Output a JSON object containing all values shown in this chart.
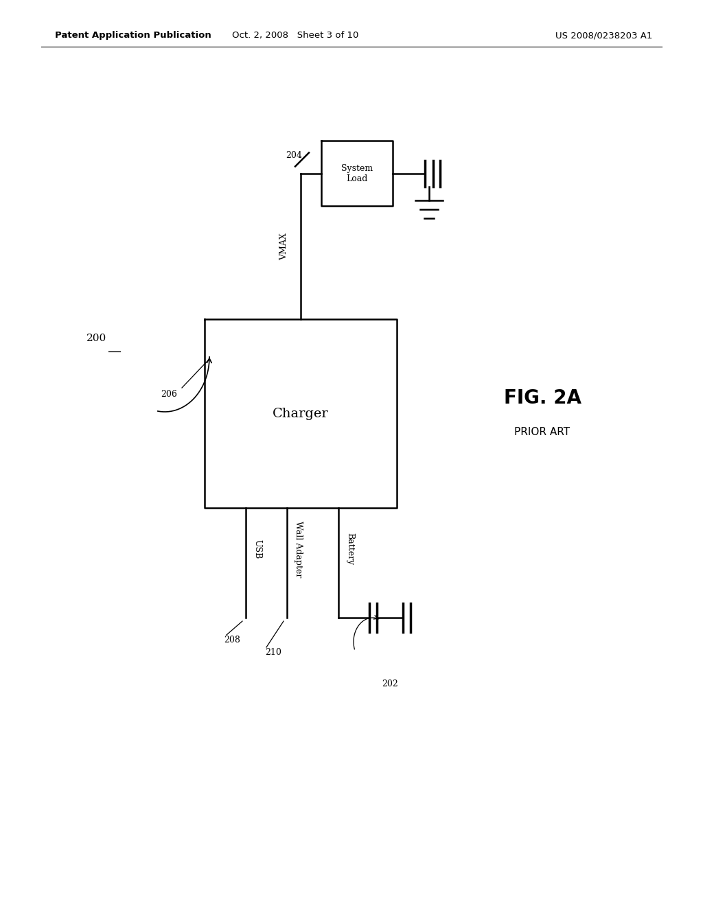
{
  "bg_color": "#ffffff",
  "header_left": "Patent Application Publication",
  "header_center": "Oct. 2, 2008   Sheet 3 of 10",
  "header_right": "US 2008/0238203 A1",
  "fig_label": "FIG. 2A",
  "fig_sublabel": "PRIOR ART",
  "ref_200": "200",
  "ref_202": "202",
  "ref_204": "204",
  "ref_206": "206",
  "ref_208": "208",
  "ref_210": "210",
  "charger_label": "Charger",
  "system_load_label": "System\nLoad",
  "vmax_label": "VMAX",
  "usb_label": "USB",
  "wall_adapter_label": "Wall Adapter",
  "battery_label": "Battery",
  "line_color": "#000000",
  "text_color": "#000000",
  "lw": 1.8
}
